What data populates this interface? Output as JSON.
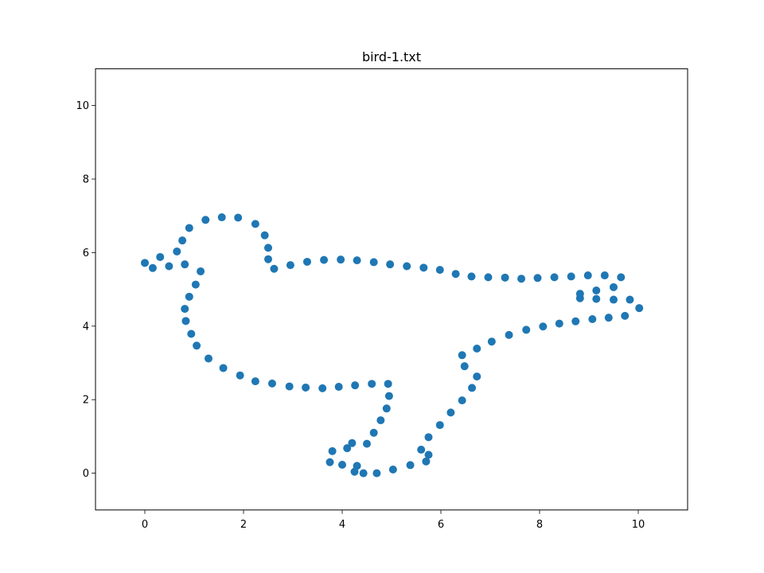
{
  "chart_data": {
    "type": "scatter",
    "title": "bird-1.txt",
    "xlabel": "",
    "ylabel": "",
    "xlim": [
      -1,
      11
    ],
    "ylim": [
      -1,
      11
    ],
    "xticks": [
      0,
      2,
      4,
      6,
      8,
      10
    ],
    "yticks": [
      0,
      2,
      4,
      6,
      8,
      10
    ],
    "grid": false,
    "marker_color": "#1f77b4",
    "series": [
      {
        "points": [
          [
            0.0,
            5.72
          ],
          [
            0.16,
            5.58
          ],
          [
            0.31,
            5.88
          ],
          [
            0.49,
            5.63
          ],
          [
            0.65,
            6.03
          ],
          [
            0.76,
            6.33
          ],
          [
            0.81,
            5.68
          ],
          [
            0.9,
            6.67
          ],
          [
            1.13,
            5.49
          ],
          [
            1.03,
            5.13
          ],
          [
            0.9,
            4.8
          ],
          [
            0.81,
            4.47
          ],
          [
            0.83,
            4.14
          ],
          [
            0.94,
            3.79
          ],
          [
            1.05,
            3.47
          ],
          [
            1.29,
            3.12
          ],
          [
            1.59,
            2.86
          ],
          [
            1.93,
            2.66
          ],
          [
            2.24,
            2.5
          ],
          [
            2.58,
            2.44
          ],
          [
            2.93,
            2.36
          ],
          [
            3.26,
            2.33
          ],
          [
            3.6,
            2.31
          ],
          [
            3.93,
            2.35
          ],
          [
            4.26,
            2.39
          ],
          [
            4.6,
            2.43
          ],
          [
            4.93,
            2.43
          ],
          [
            4.95,
            2.1
          ],
          [
            4.9,
            1.76
          ],
          [
            4.78,
            1.44
          ],
          [
            4.64,
            1.1
          ],
          [
            4.5,
            0.8
          ],
          [
            4.2,
            0.82
          ],
          [
            4.1,
            0.68
          ],
          [
            3.8,
            0.6
          ],
          [
            3.75,
            0.3
          ],
          [
            4.0,
            0.23
          ],
          [
            4.3,
            0.2
          ],
          [
            4.25,
            0.04
          ],
          [
            4.43,
            0.0
          ],
          [
            4.7,
            0.0
          ],
          [
            5.03,
            0.1
          ],
          [
            5.38,
            0.22
          ],
          [
            5.6,
            0.64
          ],
          [
            5.7,
            0.32
          ],
          [
            5.75,
            0.5
          ],
          [
            5.75,
            0.98
          ],
          [
            5.98,
            1.31
          ],
          [
            6.2,
            1.65
          ],
          [
            6.43,
            1.98
          ],
          [
            6.63,
            2.32
          ],
          [
            6.73,
            2.63
          ],
          [
            6.48,
            2.91
          ],
          [
            6.43,
            3.21
          ],
          [
            6.73,
            3.39
          ],
          [
            7.03,
            3.58
          ],
          [
            7.38,
            3.76
          ],
          [
            7.73,
            3.9
          ],
          [
            8.07,
            3.99
          ],
          [
            8.4,
            4.07
          ],
          [
            8.73,
            4.13
          ],
          [
            9.07,
            4.19
          ],
          [
            9.4,
            4.23
          ],
          [
            9.73,
            4.28
          ],
          [
            10.02,
            4.49
          ],
          [
            9.83,
            4.72
          ],
          [
            9.5,
            4.72
          ],
          [
            9.15,
            4.74
          ],
          [
            8.82,
            4.76
          ],
          [
            8.82,
            4.88
          ],
          [
            9.15,
            4.97
          ],
          [
            9.5,
            5.06
          ],
          [
            9.65,
            5.33
          ],
          [
            9.32,
            5.38
          ],
          [
            8.98,
            5.38
          ],
          [
            8.64,
            5.35
          ],
          [
            8.3,
            5.33
          ],
          [
            7.96,
            5.31
          ],
          [
            7.63,
            5.29
          ],
          [
            7.3,
            5.32
          ],
          [
            6.96,
            5.33
          ],
          [
            6.62,
            5.35
          ],
          [
            6.3,
            5.42
          ],
          [
            5.98,
            5.53
          ],
          [
            5.65,
            5.59
          ],
          [
            5.31,
            5.63
          ],
          [
            4.97,
            5.68
          ],
          [
            4.64,
            5.74
          ],
          [
            4.3,
            5.79
          ],
          [
            3.97,
            5.81
          ],
          [
            3.63,
            5.8
          ],
          [
            3.29,
            5.75
          ],
          [
            2.95,
            5.66
          ],
          [
            2.62,
            5.56
          ],
          [
            2.5,
            5.82
          ],
          [
            2.5,
            6.13
          ],
          [
            2.43,
            6.47
          ],
          [
            2.24,
            6.78
          ],
          [
            1.89,
            6.95
          ],
          [
            1.56,
            6.96
          ],
          [
            1.23,
            6.89
          ]
        ]
      }
    ]
  }
}
